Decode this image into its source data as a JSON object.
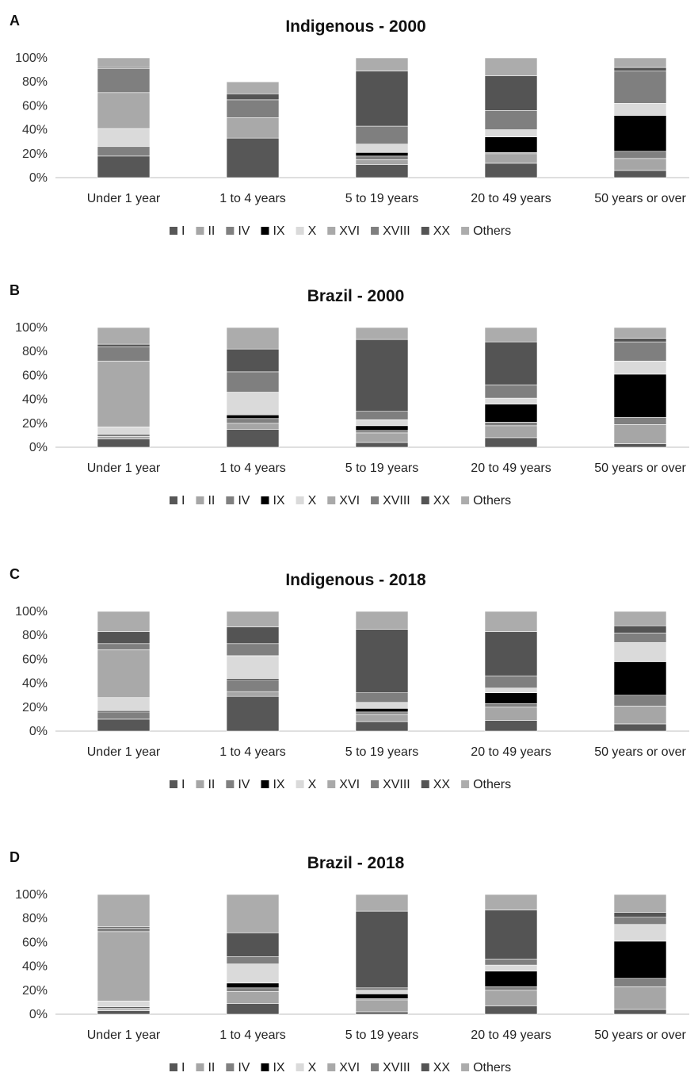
{
  "legend_colors": {
    "I": "#575757",
    "II": "#a6a6a6",
    "IV": "#808080",
    "IX": "#000000",
    "X": "#dadada",
    "XVI": "#a9a9a9",
    "XVIII": "#7f7f7f",
    "XX": "#545454",
    "Others": "#acacac"
  },
  "chart_data": [
    {
      "panel": "A",
      "type": "bar",
      "stacked": true,
      "title": "Indigenous - 2000",
      "categories": [
        "Under 1 year",
        "1 to 4 years",
        "5 to 19 years",
        "20 to 49 years",
        "50 years or over"
      ],
      "y_ticks": [
        "0%",
        "20%",
        "40%",
        "60%",
        "80%",
        "100%"
      ],
      "ylim": [
        0,
        100
      ],
      "legend_position": "bottom",
      "series": [
        {
          "name": "I",
          "values": [
            18,
            33,
            11,
            12,
            6
          ]
        },
        {
          "name": "II",
          "values": [
            0,
            0,
            4,
            8,
            10
          ]
        },
        {
          "name": "IV",
          "values": [
            8,
            0,
            3,
            1,
            6
          ]
        },
        {
          "name": "IX",
          "values": [
            0,
            0,
            3,
            13,
            30
          ]
        },
        {
          "name": "X",
          "values": [
            15,
            0,
            7,
            6,
            10
          ]
        },
        {
          "name": "XVI",
          "values": [
            30,
            17,
            0,
            0,
            0
          ]
        },
        {
          "name": "XVIII",
          "values": [
            20,
            15,
            15,
            16,
            27
          ]
        },
        {
          "name": "XX",
          "values": [
            1,
            5,
            46,
            29,
            3
          ]
        },
        {
          "name": "Others",
          "values": [
            8,
            10,
            11,
            15,
            8
          ]
        }
      ]
    },
    {
      "panel": "B",
      "type": "bar",
      "stacked": true,
      "title": "Brazil - 2000",
      "categories": [
        "Under 1 year",
        "1 to 4 years",
        "5 to 19 years",
        "20 to 49 years",
        "50 years or over"
      ],
      "y_ticks": [
        "0%",
        "20%",
        "40%",
        "60%",
        "80%",
        "100%"
      ],
      "ylim": [
        0,
        100
      ],
      "legend_position": "bottom",
      "series": [
        {
          "name": "I",
          "values": [
            7,
            15,
            4,
            8,
            3
          ]
        },
        {
          "name": "II",
          "values": [
            2,
            5,
            8,
            10,
            16
          ]
        },
        {
          "name": "IV",
          "values": [
            2,
            4,
            2,
            3,
            6
          ]
        },
        {
          "name": "IX",
          "values": [
            0,
            3,
            4,
            15,
            36
          ]
        },
        {
          "name": "X",
          "values": [
            6,
            19,
            5,
            5,
            11
          ]
        },
        {
          "name": "XVI",
          "values": [
            55,
            0,
            0,
            0,
            0
          ]
        },
        {
          "name": "XVIII",
          "values": [
            12,
            17,
            7,
            11,
            16
          ]
        },
        {
          "name": "XX",
          "values": [
            2,
            19,
            60,
            36,
            3
          ]
        },
        {
          "name": "Others",
          "values": [
            14,
            18,
            10,
            12,
            9
          ]
        }
      ]
    },
    {
      "panel": "C",
      "type": "bar",
      "stacked": true,
      "title": "Indigenous - 2018",
      "categories": [
        "Under 1 year",
        "1 to 4 years",
        "5 to 19 years",
        "20 to 49 years",
        "50 years or over"
      ],
      "y_ticks": [
        "0%",
        "20%",
        "40%",
        "60%",
        "80%",
        "100%"
      ],
      "ylim": [
        0,
        100
      ],
      "legend_position": "bottom",
      "series": [
        {
          "name": "I",
          "values": [
            10,
            29,
            8,
            9,
            6
          ]
        },
        {
          "name": "II",
          "values": [
            0,
            4,
            6,
            11,
            15
          ]
        },
        {
          "name": "IV",
          "values": [
            6,
            10,
            2,
            3,
            9
          ]
        },
        {
          "name": "IX",
          "values": [
            1,
            1,
            3,
            9,
            28
          ]
        },
        {
          "name": "X",
          "values": [
            11,
            19,
            5,
            4,
            16
          ]
        },
        {
          "name": "XVI",
          "values": [
            40,
            0,
            0,
            0,
            0
          ]
        },
        {
          "name": "XVIII",
          "values": [
            5,
            10,
            8,
            10,
            8
          ]
        },
        {
          "name": "XX",
          "values": [
            10,
            14,
            53,
            37,
            6
          ]
        },
        {
          "name": "Others",
          "values": [
            17,
            13,
            15,
            17,
            12
          ]
        }
      ]
    },
    {
      "panel": "D",
      "type": "bar",
      "stacked": true,
      "title": "Brazil - 2018",
      "categories": [
        "Under 1 year",
        "1 to 4 years",
        "5 to 19 years",
        "20 to 49 years",
        "50 years or over"
      ],
      "y_ticks": [
        "0%",
        "20%",
        "40%",
        "60%",
        "80%",
        "100%"
      ],
      "ylim": [
        0,
        100
      ],
      "legend_position": "bottom",
      "series": [
        {
          "name": "I",
          "values": [
            3,
            9,
            2,
            7,
            4
          ]
        },
        {
          "name": "II",
          "values": [
            1,
            10,
            10,
            13,
            19
          ]
        },
        {
          "name": "IV",
          "values": [
            1,
            3,
            1,
            3,
            7
          ]
        },
        {
          "name": "IX",
          "values": [
            1,
            4,
            4,
            13,
            31
          ]
        },
        {
          "name": "X",
          "values": [
            5,
            16,
            3,
            5,
            14
          ]
        },
        {
          "name": "XVI",
          "values": [
            58,
            0,
            0,
            0,
            0
          ]
        },
        {
          "name": "XVIII",
          "values": [
            3,
            6,
            2,
            5,
            6
          ]
        },
        {
          "name": "XX",
          "values": [
            1,
            20,
            64,
            41,
            4
          ]
        },
        {
          "name": "Others",
          "values": [
            27,
            32,
            14,
            13,
            15
          ]
        }
      ]
    }
  ]
}
